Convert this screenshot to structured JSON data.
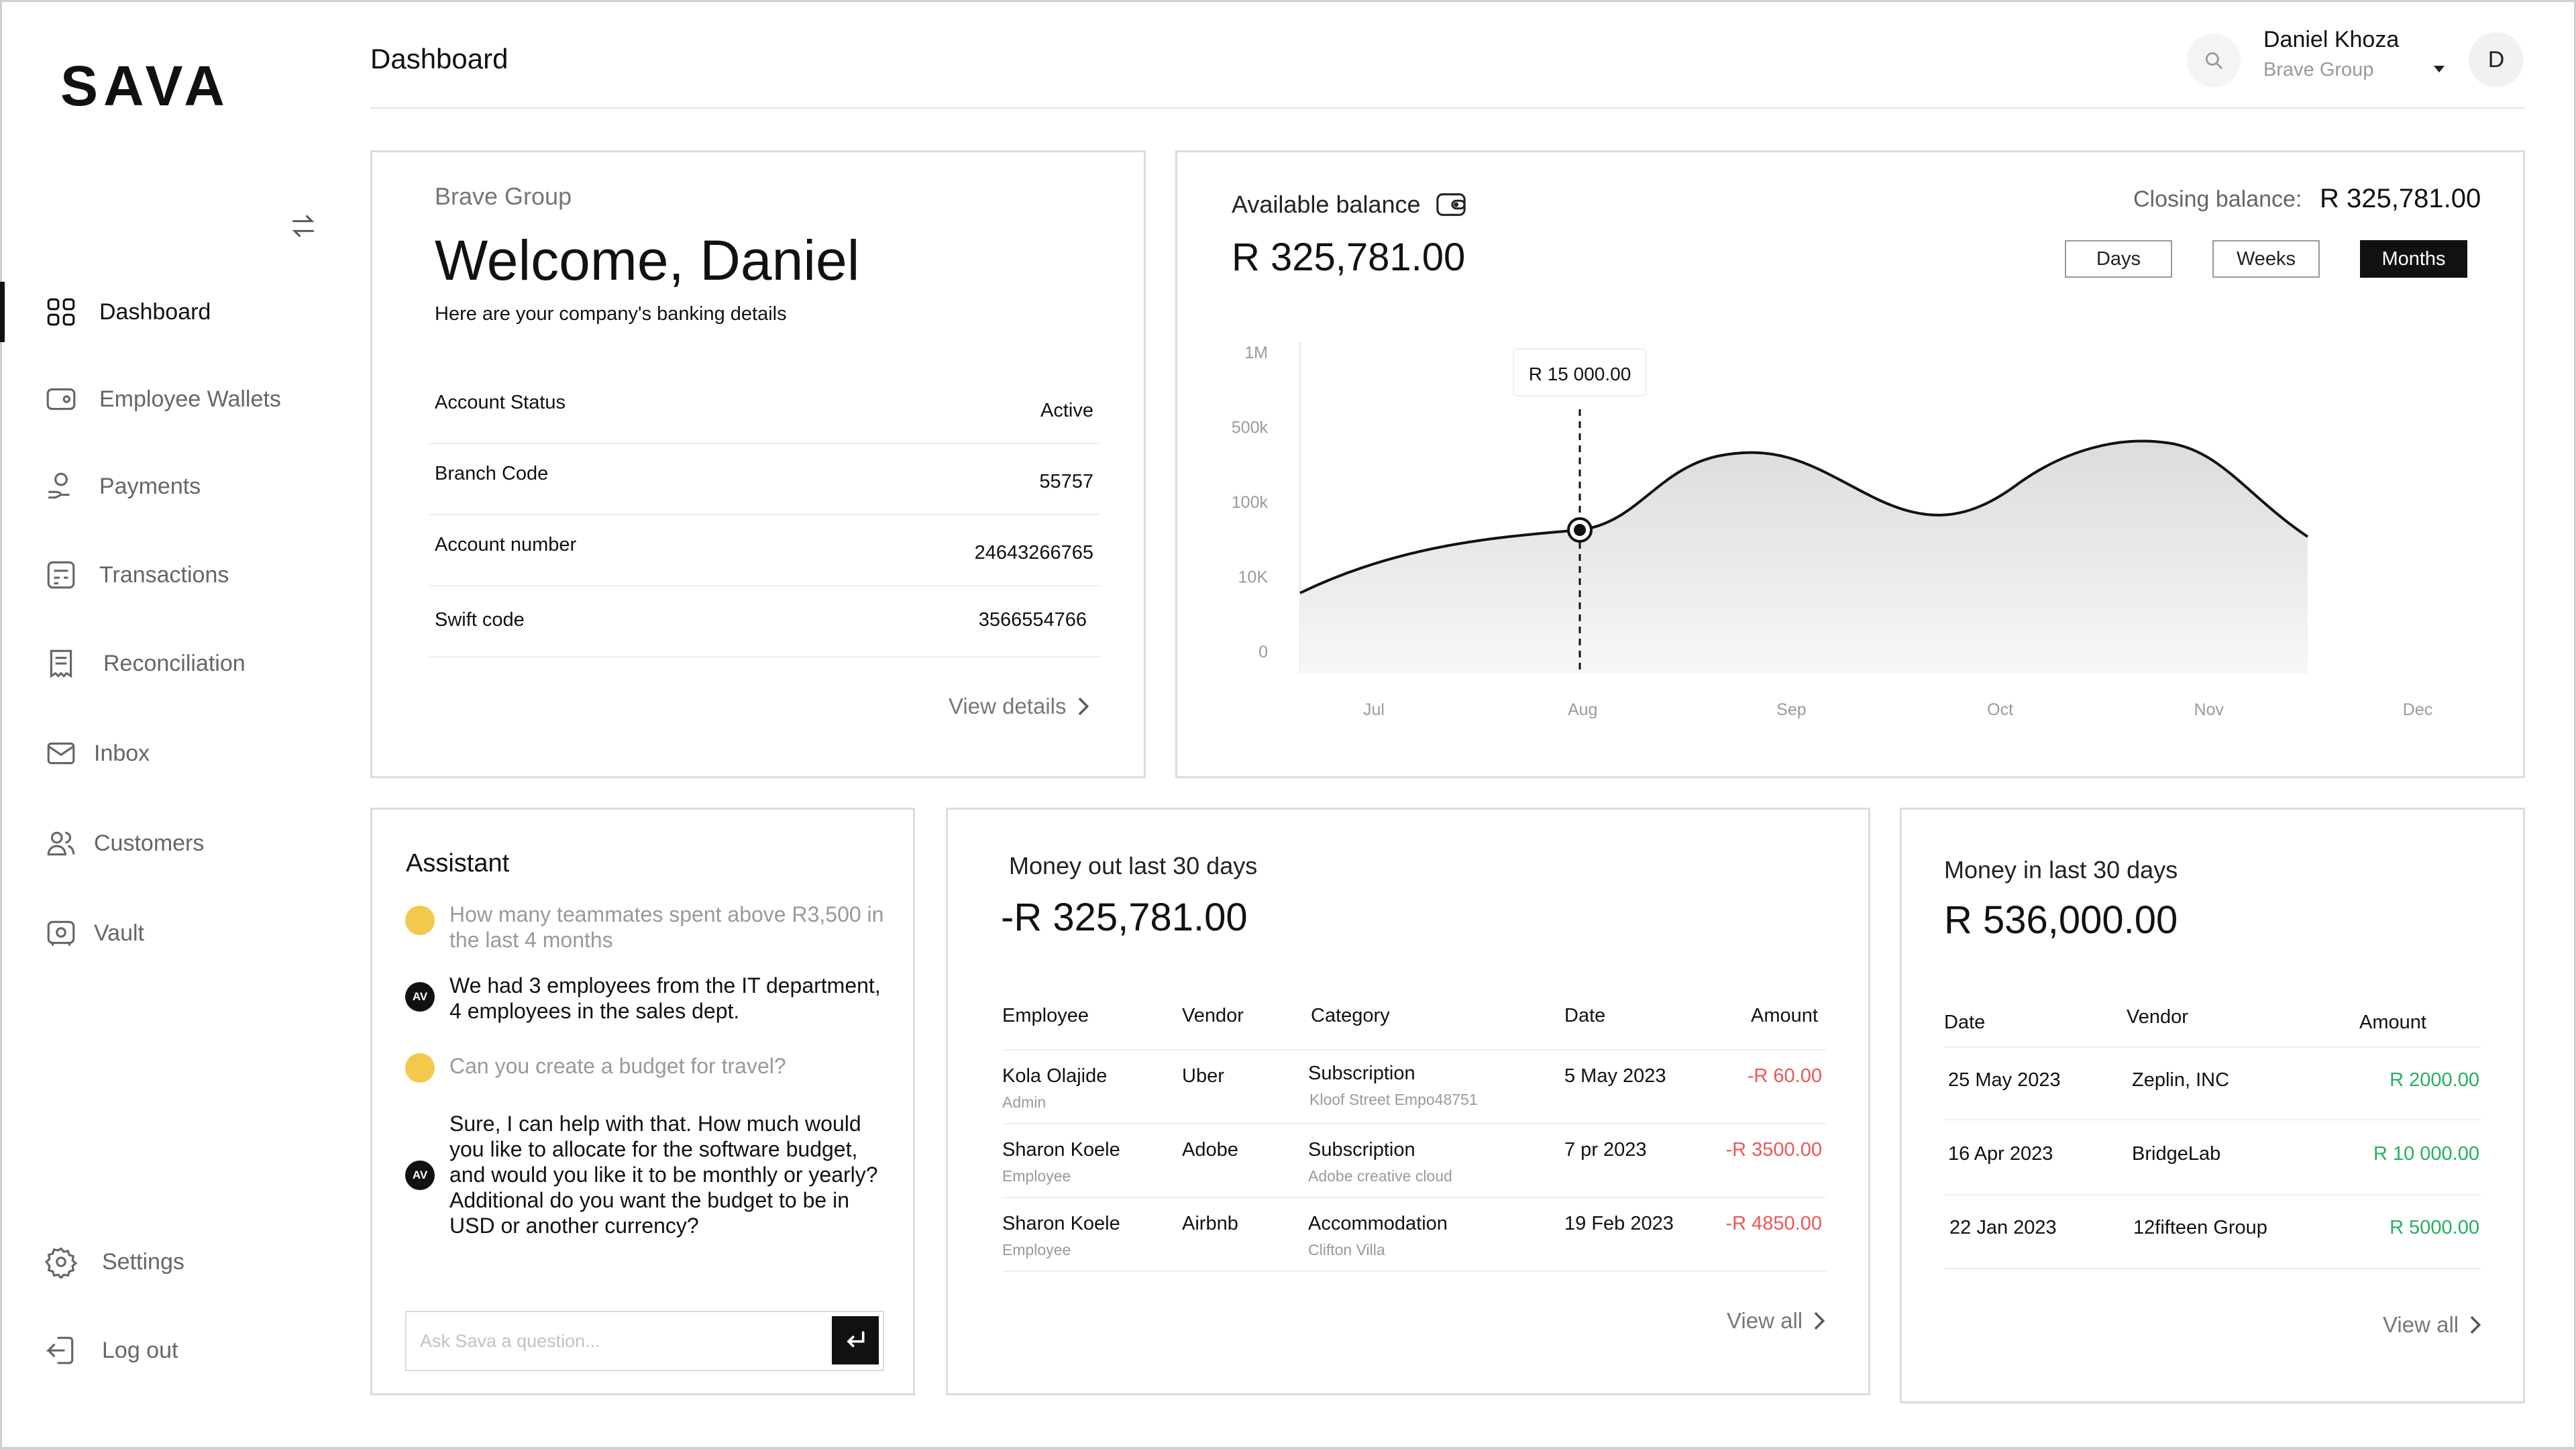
{
  "brand": {
    "logo": "SAVA"
  },
  "sidebar": {
    "items": [
      {
        "label": "Dashboard",
        "icon": "grid-icon",
        "active": true
      },
      {
        "label": "Employee Wallets",
        "icon": "wallet-icon"
      },
      {
        "label": "Payments",
        "icon": "hand-coin-icon"
      },
      {
        "label": "Transactions",
        "icon": "transactions-icon"
      },
      {
        "label": "Reconciliation",
        "icon": "receipt-icon"
      },
      {
        "label": "Inbox",
        "icon": "mail-icon"
      },
      {
        "label": "Customers",
        "icon": "users-icon"
      },
      {
        "label": "Vault",
        "icon": "vault-icon"
      }
    ],
    "bottom": [
      {
        "label": "Settings",
        "icon": "gear-icon"
      },
      {
        "label": "Log out",
        "icon": "logout-icon"
      }
    ]
  },
  "header": {
    "title": "Dashboard",
    "user": {
      "name": "Daniel Khoza",
      "org": "Brave Group",
      "initial": "D"
    }
  },
  "welcome": {
    "org": "Brave Group",
    "title": "Welcome, Daniel",
    "subtitle": "Here are your company's banking details",
    "rows": [
      {
        "label": "Account Status",
        "value": "Active"
      },
      {
        "label": "Branch Code",
        "value": "55757"
      },
      {
        "label": "Account number",
        "value": "24643266765"
      },
      {
        "label": "Swift code",
        "value": "3566554766"
      }
    ],
    "link": "View details"
  },
  "balance": {
    "label": "Available balance",
    "amount": "R 325,781.00",
    "closing_label": "Closing balance:",
    "closing_value": "R 325,781.00",
    "periods": [
      "Days",
      "Weeks",
      "Months"
    ],
    "active_period": "Months"
  },
  "chart_data": {
    "type": "area",
    "x": [
      "Jul",
      "Aug",
      "Sep",
      "Oct",
      "Nov",
      "Dec"
    ],
    "y_ticks": [
      "1M",
      "500k",
      "100k",
      "10K",
      "0"
    ],
    "y_scale": "log-like",
    "tooltip": {
      "x": "Aug",
      "label": "R 15 000.00"
    },
    "line_color": "#111111",
    "fill_color": "#e6e6e6"
  },
  "assistant": {
    "title": "Assistant",
    "messages": [
      {
        "role": "user",
        "text": "How many teammates spent above R3,500 in the  last 4 months"
      },
      {
        "role": "bot",
        "avatar": "AV",
        "text": "We had 3 employees from the IT department, 4 employees in the sales dept."
      },
      {
        "role": "user",
        "text": "Can you create a budget for travel?"
      },
      {
        "role": "bot",
        "avatar": "AV",
        "text": "Sure, I can help with that. How much would you like to allocate for the software budget, and would you like it to be monthly or yearly? Additional do you want the budget to be in USD or another currency?"
      }
    ],
    "input_placeholder": "Ask Sava a question..."
  },
  "money_out": {
    "label": "Money out last 30 days",
    "amount": "-R 325,781.00",
    "headers": [
      "Employee",
      "Vendor",
      "Category",
      "Date",
      "Amount"
    ],
    "rows": [
      {
        "employee": "Kola Olajide",
        "role": "Admin",
        "vendor": "Uber",
        "category": "Subscription",
        "detail": "Kloof Street Empo48751",
        "date": "5 May 2023",
        "amount": "-R 60.00"
      },
      {
        "employee": "Sharon Koele",
        "role": "Employee",
        "vendor": "Adobe",
        "category": "Subscription",
        "detail": "Adobe creative cloud",
        "date": "7 pr 2023",
        "amount": "-R 3500.00"
      },
      {
        "employee": "Sharon Koele",
        "role": "Employee",
        "vendor": "Airbnb",
        "category": "Accommodation",
        "detail": "Clifton Villa",
        "date": "19 Feb 2023",
        "amount": "-R 4850.00"
      }
    ],
    "link": "View all"
  },
  "money_in": {
    "label": "Money in last 30 days",
    "amount": "R 536,000.00",
    "headers": [
      "Date",
      "Vendor",
      "Amount"
    ],
    "rows": [
      {
        "date": "25 May 2023",
        "vendor": "Zeplin, INC",
        "amount": "R 2000.00"
      },
      {
        "date": "16 Apr 2023",
        "vendor": "BridgeLab",
        "amount": "R 10 000.00"
      },
      {
        "date": "22 Jan 2023",
        "vendor": "12fifteen Group",
        "amount": "R 5000.00"
      }
    ],
    "link": "View all"
  }
}
